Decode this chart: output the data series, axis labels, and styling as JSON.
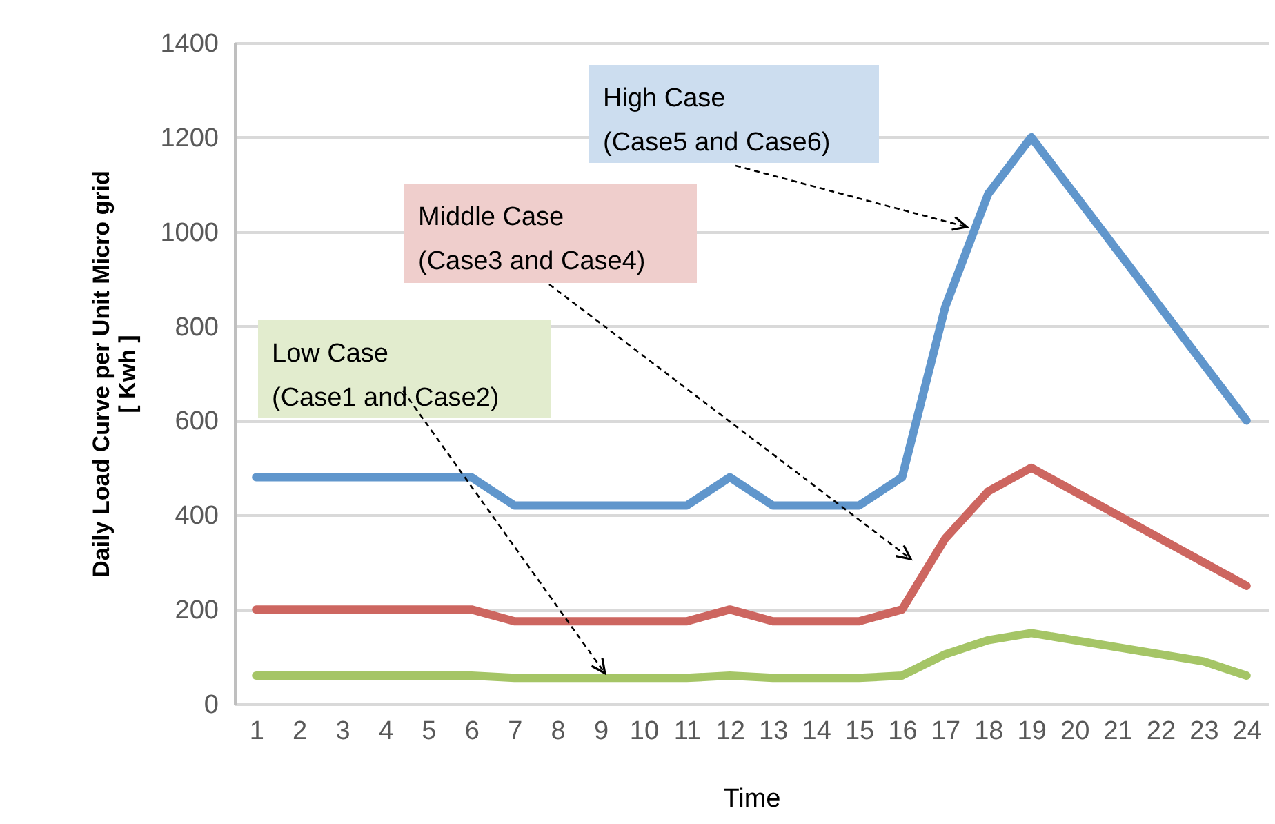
{
  "chart_data": {
    "type": "line",
    "xlabel": "Time",
    "ylabel": "Daily Load Curve per Unit Micro grid\n[ Kwh ]",
    "x": [
      1,
      2,
      3,
      4,
      5,
      6,
      7,
      8,
      9,
      10,
      11,
      12,
      13,
      14,
      15,
      16,
      17,
      18,
      19,
      20,
      21,
      22,
      23,
      24
    ],
    "xlim": [
      0.5,
      24.5
    ],
    "xticks": [
      1,
      2,
      3,
      4,
      5,
      6,
      7,
      8,
      9,
      10,
      11,
      12,
      13,
      14,
      15,
      16,
      17,
      18,
      19,
      20,
      21,
      22,
      23,
      24
    ],
    "ylim": [
      0,
      1400
    ],
    "yticks": [
      0,
      200,
      400,
      600,
      800,
      1000,
      1200,
      1400
    ],
    "grid": "y",
    "legend": false,
    "marker": "none",
    "line_style": "solid",
    "series": [
      {
        "color": "#6096cc",
        "values": [
          480,
          480,
          480,
          480,
          480,
          480,
          420,
          420,
          420,
          420,
          420,
          480,
          420,
          420,
          420,
          480,
          840,
          1080,
          1200,
          1080,
          960,
          840,
          720,
          600
        ]
      },
      {
        "color": "#cd6660",
        "values": [
          200,
          200,
          200,
          200,
          200,
          200,
          175,
          175,
          175,
          175,
          175,
          200,
          175,
          175,
          175,
          200,
          350,
          450,
          500,
          450,
          400,
          350,
          300,
          250
        ]
      },
      {
        "color": "#a5c566",
        "values": [
          60,
          60,
          60,
          60,
          60,
          60,
          55,
          55,
          55,
          55,
          55,
          60,
          55,
          55,
          55,
          60,
          105,
          135,
          150,
          135,
          120,
          105,
          90,
          60
        ]
      }
    ],
    "annotations": [
      {
        "text": "High Case\n(Case5 and Case6)",
        "x": 17.5,
        "y": 1010
      },
      "Middle Case\n(Case3 and Case4)",
      {
        "text": "Low Case\n(Case1 and Case2)",
        "x": 9.1,
        "y": 65
      }
    ]
  }
}
